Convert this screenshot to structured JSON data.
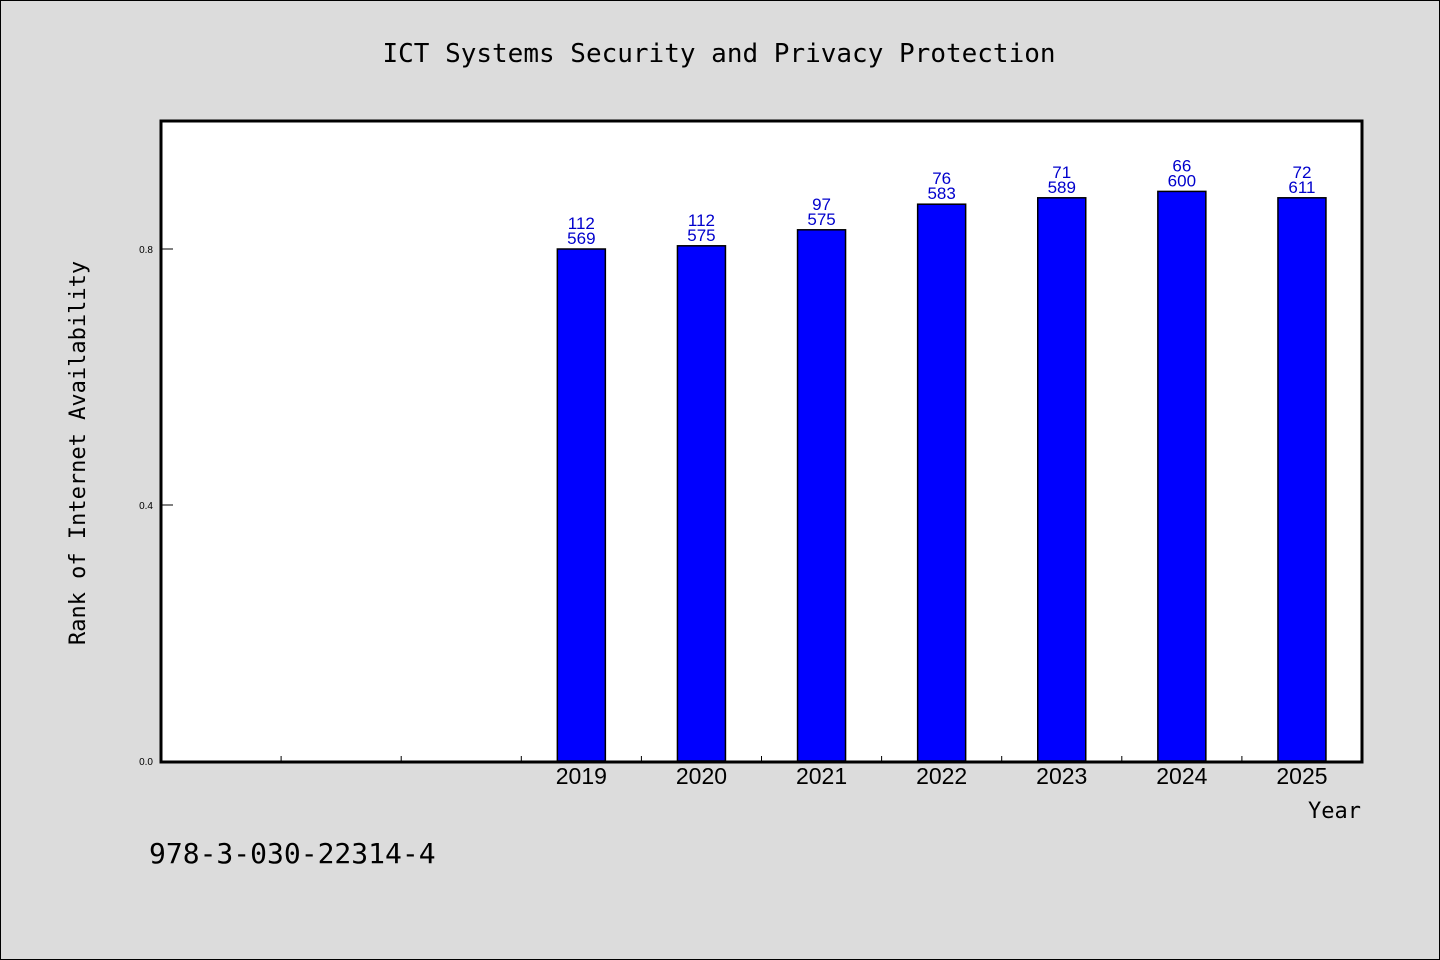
{
  "chart_data": {
    "type": "bar",
    "title": "ICT Systems Security and Privacy Protection",
    "xlabel": "Year",
    "ylabel": "Rank of Internet Availability",
    "categories": [
      "2019",
      "2020",
      "2021",
      "2022",
      "2023",
      "2024",
      "2025"
    ],
    "slot_count": 10,
    "first_category_slot": 3,
    "values": [
      0.8,
      0.805,
      0.83,
      0.87,
      0.88,
      0.89,
      0.88
    ],
    "label_top": [
      "112",
      "112",
      "97",
      "76",
      "71",
      "66",
      "72"
    ],
    "label_bottom": [
      "569",
      "575",
      "575",
      "583",
      "589",
      "600",
      "611"
    ],
    "ylim": [
      0,
      1.0
    ],
    "yticks": [
      {
        "value": 0.0,
        "label": "0.0"
      },
      {
        "value": 0.4,
        "label": "0.4"
      },
      {
        "value": 0.8,
        "label": "0.8"
      }
    ],
    "grid": false,
    "bar_color": "#0000ff",
    "label_color": "#0000cc"
  },
  "footer": {
    "isbn": "978-3-030-22314-4"
  }
}
